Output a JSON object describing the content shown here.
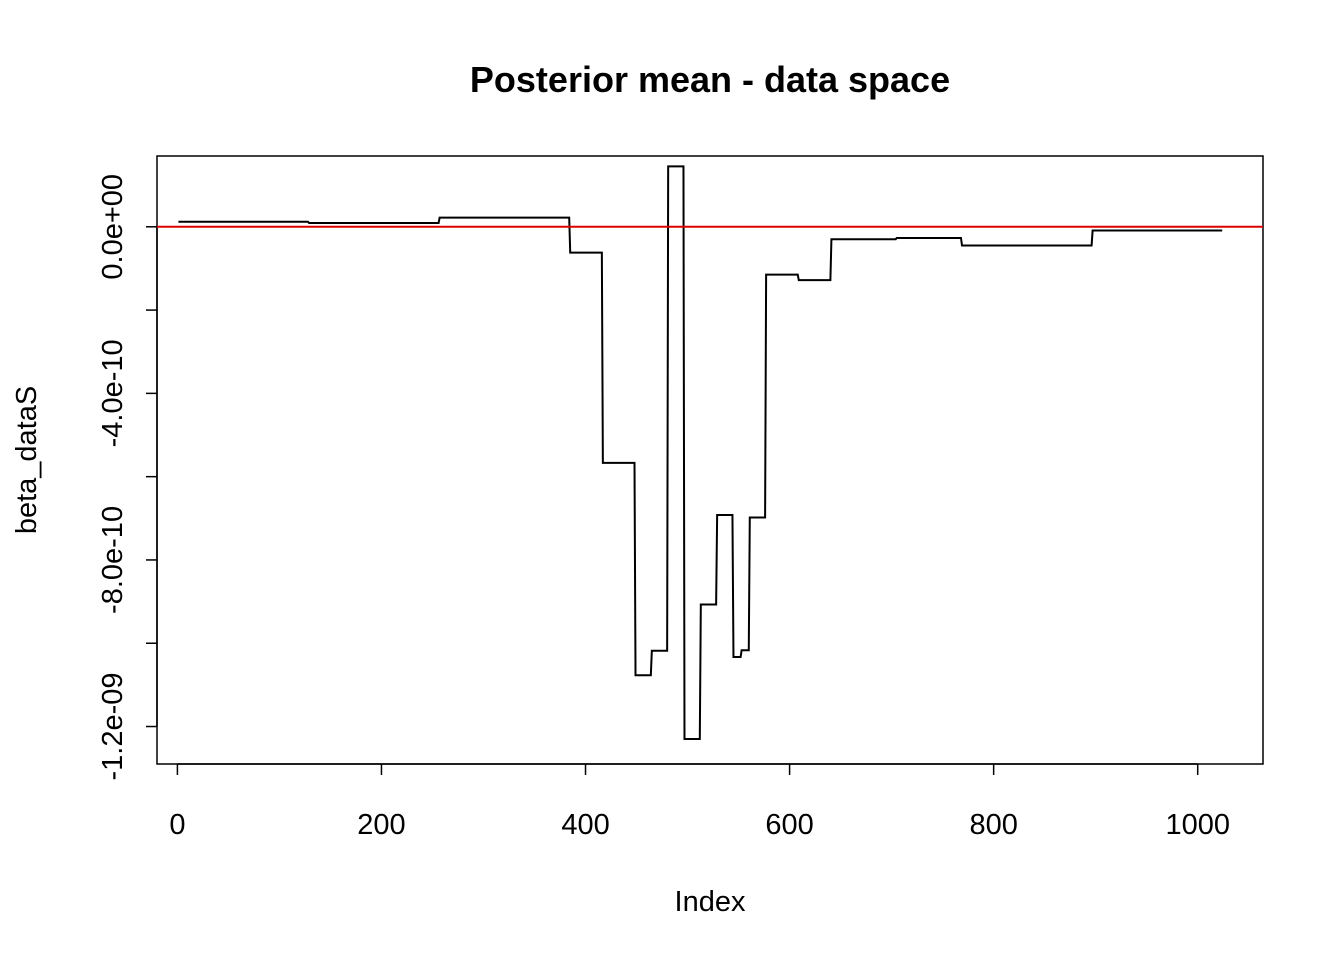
{
  "chart_data": {
    "type": "line",
    "title": "Posterior mean - data space",
    "xlabel": "Index",
    "ylabel": "beta_dataS",
    "xlim": [
      -20,
      1064
    ],
    "ylim": [
      -1.29e-09,
      1.7e-10
    ],
    "x_ticks": [
      {
        "value": 0,
        "label": "0"
      },
      {
        "value": 200,
        "label": "200"
      },
      {
        "value": 400,
        "label": "400"
      },
      {
        "value": 600,
        "label": "600"
      },
      {
        "value": 800,
        "label": "800"
      },
      {
        "value": 1000,
        "label": "1000"
      }
    ],
    "y_ticks": [
      {
        "value": 0,
        "label": "0.0e+00"
      },
      {
        "value": -2e-10,
        "label": ""
      },
      {
        "value": -4e-10,
        "label": "-4.0e-10"
      },
      {
        "value": -6e-10,
        "label": ""
      },
      {
        "value": -8e-10,
        "label": "-8.0e-10"
      },
      {
        "value": -1e-09,
        "label": ""
      },
      {
        "value": -1.2e-09,
        "label": "-1.2e-09"
      }
    ],
    "grid": false,
    "reference_line": {
      "y": 0,
      "color": "#dd0000"
    },
    "series": [
      {
        "step": true,
        "color": "#000000",
        "x": [
          1,
          128,
          129,
          256,
          257,
          384,
          385,
          416,
          417,
          448,
          449,
          464,
          465,
          480,
          481,
          496,
          497,
          512,
          513,
          528,
          529,
          544,
          545,
          552,
          553,
          560,
          561,
          576,
          577,
          608,
          609,
          640,
          641,
          704,
          705,
          768,
          769,
          896,
          897,
          1024
        ],
        "y": [
          1.2e-11,
          1.2e-11,
          9e-12,
          9e-12,
          2.2e-11,
          2.2e-11,
          -6.2e-11,
          -6.2e-11,
          -5.67e-10,
          -5.67e-10,
          -1.077e-09,
          -1.077e-09,
          -1.018e-09,
          -1.018e-09,
          1.45e-10,
          1.45e-10,
          -1.23e-09,
          -1.23e-09,
          -9.07e-10,
          -9.07e-10,
          -6.92e-10,
          -6.92e-10,
          -1.033e-09,
          -1.033e-09,
          -1.017e-09,
          -1.017e-09,
          -6.98e-10,
          -6.98e-10,
          -1.15e-10,
          -1.15e-10,
          -1.28e-10,
          -1.28e-10,
          -3e-11,
          -3e-11,
          -2.7e-11,
          -2.7e-11,
          -4.5e-11,
          -4.5e-11,
          -9e-12,
          -9e-12
        ]
      }
    ]
  }
}
